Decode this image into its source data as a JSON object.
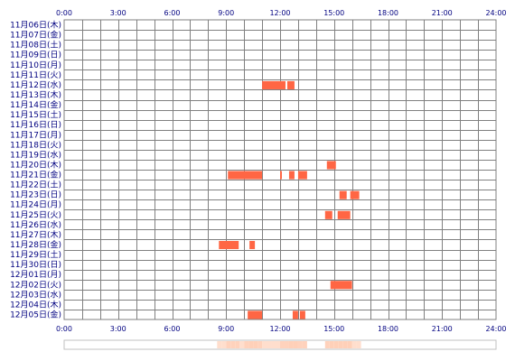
{
  "chart_data": {
    "type": "timeline",
    "x_ticks": [
      "0:00",
      "3:00",
      "6:00",
      "9:00",
      "12:00",
      "15:00",
      "18:00",
      "21:00",
      "24:00"
    ],
    "xlim_hours": [
      0,
      24
    ],
    "grid": true,
    "colors": {
      "bar": "#ff6644",
      "grid": "#808080",
      "text": "#000080",
      "density": "#ffd0b8"
    },
    "days": [
      "11月06日(木)",
      "11月07日(金)",
      "11月08日(土)",
      "11月09日(日)",
      "11月10日(月)",
      "11月11日(火)",
      "11月12日(水)",
      "11月13日(木)",
      "11月14日(金)",
      "11月15日(土)",
      "11月16日(日)",
      "11月17日(月)",
      "11月18日(火)",
      "11月19日(水)",
      "11月20日(木)",
      "11月21日(金)",
      "11月22日(土)",
      "11月23日(日)",
      "11月24日(月)",
      "11月25日(火)",
      "11月26日(水)",
      "11月27日(木)",
      "11月28日(金)",
      "11月29日(土)",
      "11月30日(日)",
      "12月01日(月)",
      "12月02日(火)",
      "12月03日(水)",
      "12月04日(木)",
      "12月05日(金)"
    ],
    "activity": [
      {
        "day": "11月12日(水)",
        "start": 11.0,
        "end": 12.3
      },
      {
        "day": "11月12日(水)",
        "start": 12.4,
        "end": 12.8
      },
      {
        "day": "11月20日(木)",
        "start": 14.6,
        "end": 15.1
      },
      {
        "day": "11月21日(金)",
        "start": 9.1,
        "end": 11.0
      },
      {
        "day": "11月21日(金)",
        "start": 12.0,
        "end": 12.1
      },
      {
        "day": "11月21日(金)",
        "start": 12.5,
        "end": 12.8
      },
      {
        "day": "11月21日(金)",
        "start": 13.0,
        "end": 13.5
      },
      {
        "day": "11月23日(日)",
        "start": 15.3,
        "end": 15.7
      },
      {
        "day": "11月23日(日)",
        "start": 15.9,
        "end": 16.4
      },
      {
        "day": "11月25日(火)",
        "start": 14.5,
        "end": 14.9
      },
      {
        "day": "11月25日(火)",
        "start": 15.2,
        "end": 15.9
      },
      {
        "day": "11月28日(金)",
        "start": 8.6,
        "end": 9.7
      },
      {
        "day": "11月28日(金)",
        "start": 10.3,
        "end": 10.6
      },
      {
        "day": "12月02日(火)",
        "start": 14.8,
        "end": 16.0
      },
      {
        "day": "12月05日(金)",
        "start": 10.2,
        "end": 11.0
      },
      {
        "day": "12月05日(金)",
        "start": 12.7,
        "end": 13.0
      },
      {
        "day": "12月05日(金)",
        "start": 13.1,
        "end": 13.4
      }
    ]
  }
}
